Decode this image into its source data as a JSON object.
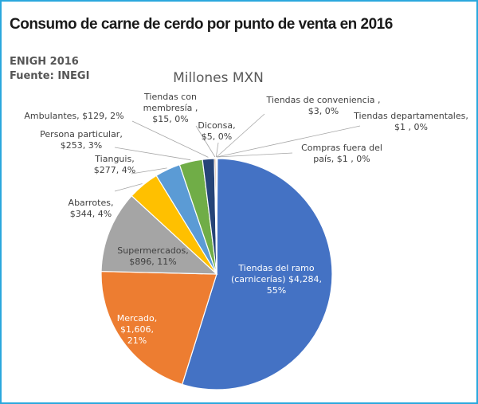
{
  "header": {
    "title": "Consumo de carne de cerdo por punto de venta en 2016",
    "source_line1": "ENIGH 2016",
    "source_line2": "Fuente: INEGI"
  },
  "chart_data": {
    "type": "pie",
    "title": "Millones MXN",
    "slices": [
      {
        "name": "Tiendas del ramo (carnicerías)",
        "value": 4284,
        "percent": 55,
        "color": "#4472c4",
        "label_lines": [
          "Tiendas del ramo",
          "(carnicerías)  $4,284,",
          "55%"
        ]
      },
      {
        "name": "Mercado",
        "value": 1606,
        "percent": 21,
        "color": "#ed7d31",
        "label_lines": [
          "Mercado,",
          "$1,606,",
          "21%"
        ]
      },
      {
        "name": "Supermercados",
        "value": 896,
        "percent": 11,
        "color": "#a5a5a5",
        "label_lines": [
          "Supermercados,",
          "$896, 11%"
        ]
      },
      {
        "name": "Abarrotes",
        "value": 344,
        "percent": 4,
        "color": "#ffc000",
        "label_lines": [
          "Abarrotes,",
          "$344, 4%"
        ]
      },
      {
        "name": "Tianguis",
        "value": 277,
        "percent": 4,
        "color": "#5b9bd5",
        "label_lines": [
          "Tianguis,",
          "$277, 4%"
        ]
      },
      {
        "name": "Persona particular",
        "value": 253,
        "percent": 3,
        "color": "#70ad47",
        "label_lines": [
          "Persona particular,",
          "$253, 3%"
        ]
      },
      {
        "name": "Ambulantes",
        "value": 129,
        "percent": 2,
        "color": "#264478",
        "label_lines": [
          "Ambulantes,  $129, 2%"
        ]
      },
      {
        "name": "Tiendas con membresía",
        "value": 15,
        "percent": 0,
        "color": "#9e480e",
        "label_lines": [
          "Tiendas con",
          "membresía ,",
          "$15, 0%"
        ]
      },
      {
        "name": "Diconsa",
        "value": 5,
        "percent": 0,
        "color": "#636363",
        "label_lines": [
          "Diconsa,",
          "$5, 0%"
        ]
      },
      {
        "name": "Tiendas de conveniencia",
        "value": 3,
        "percent": 0,
        "color": "#997300",
        "label_lines": [
          "Tiendas de conveniencia ,",
          "$3, 0%"
        ]
      },
      {
        "name": "Tiendas departamentales",
        "value": 1,
        "percent": 0,
        "color": "#255e91",
        "label_lines": [
          "Tiendas departamentales,",
          "$1 , 0%"
        ]
      },
      {
        "name": "Compras fuera del país",
        "value": 1,
        "percent": 0,
        "color": "#43682b",
        "label_lines": [
          "Compras fuera del",
          "país,  $1 , 0%"
        ]
      }
    ]
  }
}
